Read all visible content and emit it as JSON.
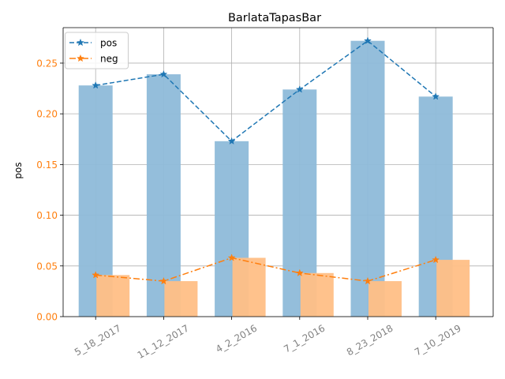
{
  "chart_data": {
    "type": "bar",
    "title": "BarlataTapasBar",
    "xlabel": "",
    "ylabel": "pos",
    "categories": [
      "5_18_2017",
      "11_12_2017",
      "4_2_2016",
      "7_1_2016",
      "8_23_2018",
      "7_10_2019"
    ],
    "ylim": [
      0,
      0.285
    ],
    "yticks": [
      "0.00",
      "0.05",
      "0.10",
      "0.15",
      "0.20",
      "0.25"
    ],
    "grid": true,
    "legend_position": "top-left",
    "series": [
      {
        "name": "pos",
        "values": [
          0.228,
          0.239,
          0.173,
          0.224,
          0.272,
          0.217
        ],
        "color": "#1f77b4",
        "bar_color": "#8ebad9",
        "line_style": "dashed",
        "marker": "star"
      },
      {
        "name": "neg",
        "values": [
          0.041,
          0.035,
          0.058,
          0.043,
          0.035,
          0.056
        ],
        "color": "#ff7f0e",
        "bar_color": "#ffbf86",
        "line_style": "dashdot",
        "marker": "star"
      }
    ],
    "tick_label_color": "#ff7f0e",
    "x_tick_label_color": "#808080"
  }
}
